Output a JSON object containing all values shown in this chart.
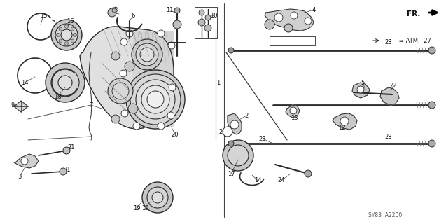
{
  "bg_color": "#ffffff",
  "diagram_code": "SY83  A2200",
  "fig_width": 6.37,
  "fig_height": 3.2,
  "dpi": 100,
  "lc": "#2a2a2a",
  "tc": "#111111",
  "gray_fill": "#d8d8d8",
  "light_fill": "#eeeeee"
}
